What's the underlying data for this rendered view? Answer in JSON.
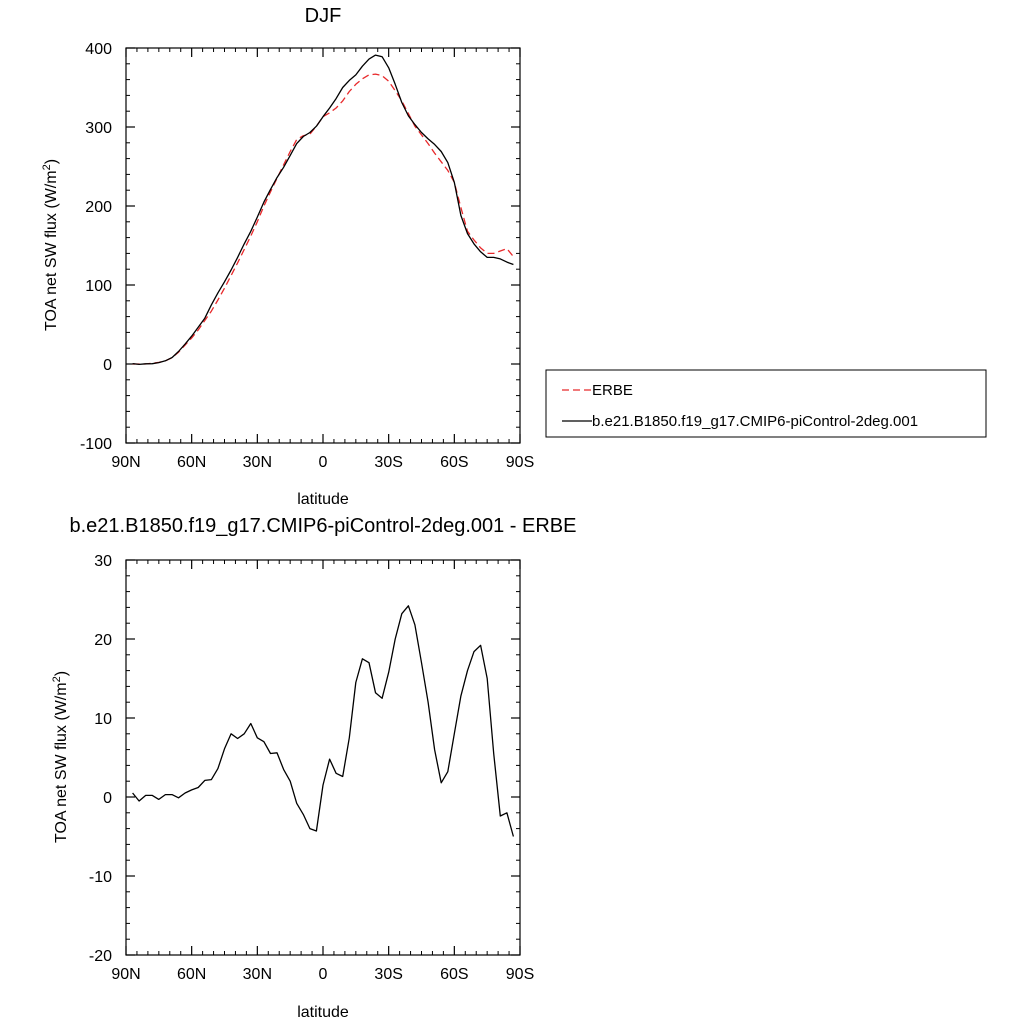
{
  "chart_data": [
    {
      "type": "line",
      "title": "DJF",
      "xlabel": "latitude",
      "ylabel": "TOA net SW flux (W/m",
      "ylabel_sup": "2",
      "ylabel_close": ")",
      "xlim": [
        90,
        -90
      ],
      "ylim": [
        -100,
        400
      ],
      "xticks": [
        90,
        60,
        30,
        0,
        -30,
        -60,
        -90
      ],
      "xtick_labels": [
        "90N",
        "60N",
        "30N",
        "0",
        "30S",
        "60S",
        "90S"
      ],
      "yticks": [
        -100,
        0,
        100,
        200,
        300,
        400
      ],
      "ytick_labels": [
        "-100",
        "0",
        "100",
        "200",
        "300",
        "400"
      ],
      "grid": false,
      "legend_position": "right",
      "series": [
        {
          "name": "ERBE",
          "color": "#e8292b",
          "dash": "dashed",
          "x": [
            87,
            84,
            81,
            78,
            75,
            72,
            69,
            66,
            63,
            60,
            57,
            54,
            51,
            48,
            45,
            42,
            39,
            36,
            33,
            30,
            27,
            24,
            21,
            18,
            15,
            12,
            9,
            6,
            3,
            0,
            -3,
            -6,
            -9,
            -12,
            -15,
            -18,
            -21,
            -24,
            -27,
            -30,
            -33,
            -36,
            -39,
            -42,
            -45,
            -48,
            -51,
            -54,
            -57,
            -60,
            -63,
            -66,
            -69,
            -72,
            -75,
            -78,
            -81,
            -84,
            -87
          ],
          "y": [
            0,
            0,
            0,
            1,
            2,
            4,
            8,
            15,
            24,
            33,
            43,
            55,
            67,
            81,
            96,
            112,
            128,
            145,
            162,
            180,
            200,
            218,
            235,
            252,
            269,
            284,
            289,
            291,
            301,
            313,
            318,
            324,
            333,
            345,
            354,
            361,
            366,
            367,
            365,
            358,
            346,
            333,
            317,
            301,
            290,
            279,
            267,
            256,
            245,
            230,
            198,
            168,
            157,
            147,
            140,
            140,
            143,
            146,
            136
          ]
        },
        {
          "name": "b.e21.B1850.f19_g17.CMIP6-piControl-2deg.001",
          "color": "#000000",
          "dash": "solid",
          "x": [
            87,
            84,
            81,
            78,
            75,
            72,
            69,
            66,
            63,
            60,
            57,
            54,
            51,
            48,
            45,
            42,
            39,
            36,
            33,
            30,
            27,
            24,
            21,
            18,
            15,
            12,
            9,
            6,
            3,
            0,
            -3,
            -6,
            -9,
            -12,
            -15,
            -18,
            -21,
            -24,
            -27,
            -30,
            -33,
            -36,
            -39,
            -42,
            -45,
            -48,
            -51,
            -54,
            -57,
            -60,
            -63,
            -66,
            -69,
            -72,
            -75,
            -78,
            -81,
            -84,
            -87
          ],
          "y": [
            0.5,
            -0.5,
            0.2,
            0.4,
            1.8,
            4,
            8.1,
            15.8,
            25.2,
            35.3,
            46.5,
            58,
            75,
            90,
            104,
            119,
            135,
            152,
            168,
            186,
            205,
            221,
            236,
            249,
            264,
            279,
            288,
            293,
            301,
            313,
            324,
            336,
            350,
            359,
            366,
            377,
            386,
            391,
            389,
            375,
            354,
            331,
            314,
            303,
            293,
            285,
            278,
            269,
            255,
            230,
            188,
            165,
            152,
            142,
            135,
            135,
            133,
            129,
            126
          ]
        }
      ]
    },
    {
      "type": "line",
      "title": "b.e21.B1850.f19_g17.CMIP6-piControl-2deg.001 - ERBE",
      "xlabel": "latitude",
      "ylabel": "TOA net SW flux (W/m",
      "ylabel_sup": "2",
      "ylabel_close": ")",
      "xlim": [
        90,
        -90
      ],
      "ylim": [
        -20,
        30
      ],
      "xticks": [
        90,
        60,
        30,
        0,
        -30,
        -60,
        -90
      ],
      "xtick_labels": [
        "90N",
        "60N",
        "30N",
        "0",
        "30S",
        "60S",
        "90S"
      ],
      "yticks": [
        -20,
        -10,
        0,
        10,
        20,
        30
      ],
      "ytick_labels": [
        "-20",
        "-10",
        "0",
        "10",
        "20",
        "30"
      ],
      "grid": false,
      "series": [
        {
          "color": "#000000",
          "dash": "solid",
          "x": [
            87,
            84,
            81,
            78,
            75,
            72,
            69,
            66,
            63,
            60,
            57,
            54,
            51,
            48,
            45,
            42,
            39,
            36,
            33,
            30,
            27,
            24,
            21,
            18,
            15,
            12,
            9,
            6,
            3,
            0,
            -3,
            -6,
            -9,
            -12,
            -15,
            -18,
            -21,
            -24,
            -27,
            -30,
            -33,
            -36,
            -39,
            -42,
            -45,
            -48,
            -51,
            -54,
            -57,
            -60,
            -63,
            -66,
            -69,
            -72,
            -75,
            -78,
            -81,
            -84,
            -87
          ],
          "y": [
            0.5,
            -0.5,
            0.2,
            0.2,
            -0.3,
            0.3,
            0.3,
            -0.1,
            0.5,
            0.9,
            1.2,
            2.1,
            2.2,
            3.6,
            6.1,
            8.0,
            7.4,
            8.0,
            9.3,
            7.5,
            7.0,
            5.5,
            5.6,
            3.5,
            2.0,
            -0.8,
            -2.2,
            -4.0,
            -4.3,
            1.5,
            4.8,
            3.0,
            2.6,
            7.5,
            14.5,
            17.5,
            17.0,
            13.2,
            12.5,
            15.8,
            20.0,
            23.2,
            24.2,
            21.8,
            17.0,
            12.0,
            6.0,
            1.8,
            3.2,
            8.0,
            12.8,
            16.0,
            18.4,
            19.2,
            15.0,
            5.5,
            -2.4,
            -2.0,
            -5.0
          ]
        }
      ]
    }
  ]
}
